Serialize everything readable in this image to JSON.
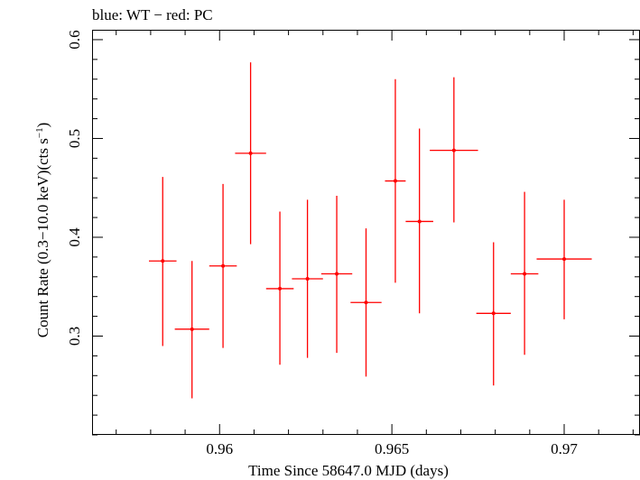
{
  "chart_data": {
    "type": "scatter",
    "title": "blue: WT − red: PC",
    "xlabel": "Time Since 58647.0 MJD (days)",
    "ylabel_main": "Count Rate (0.3−10.0 keV)(cts s",
    "ylabel_sup": "−1",
    "ylabel_close": ")",
    "xlim": [
      0.9563,
      0.9722
    ],
    "ylim": [
      0.2,
      0.61
    ],
    "x_ticks": [
      0.96,
      0.965,
      0.97
    ],
    "x_tick_labels": [
      "0.96",
      "0.965",
      "0.97"
    ],
    "y_ticks": [
      0.3,
      0.4,
      0.5,
      0.6
    ],
    "y_tick_labels": [
      "0.3",
      "0.4",
      "0.5",
      "0.6"
    ],
    "colors": {
      "PC": "#ff0000",
      "axes": "#000000"
    },
    "series": [
      {
        "name": "PC",
        "points": [
          {
            "x": 0.95835,
            "y": 0.376,
            "xerr": 0.0004,
            "ylo": 0.29,
            "yhi": 0.461
          },
          {
            "x": 0.9592,
            "y": 0.307,
            "xerr": 0.0005,
            "ylo": 0.237,
            "yhi": 0.376
          },
          {
            "x": 0.9601,
            "y": 0.371,
            "xerr": 0.0004,
            "ylo": 0.288,
            "yhi": 0.454
          },
          {
            "x": 0.9609,
            "y": 0.485,
            "xerr": 0.00045,
            "ylo": 0.393,
            "yhi": 0.577
          },
          {
            "x": 0.96175,
            "y": 0.348,
            "xerr": 0.0004,
            "ylo": 0.271,
            "yhi": 0.426
          },
          {
            "x": 0.96255,
            "y": 0.358,
            "xerr": 0.00045,
            "ylo": 0.278,
            "yhi": 0.438
          },
          {
            "x": 0.9634,
            "y": 0.363,
            "xerr": 0.00045,
            "ylo": 0.283,
            "yhi": 0.442
          },
          {
            "x": 0.96425,
            "y": 0.334,
            "xerr": 0.00045,
            "ylo": 0.259,
            "yhi": 0.409
          },
          {
            "x": 0.9651,
            "y": 0.457,
            "xerr": 0.0003,
            "ylo": 0.354,
            "yhi": 0.56
          },
          {
            "x": 0.9658,
            "y": 0.416,
            "xerr": 0.0004,
            "ylo": 0.323,
            "yhi": 0.51
          },
          {
            "x": 0.9668,
            "y": 0.488,
            "xerr": 0.0007,
            "ylo": 0.415,
            "yhi": 0.562
          },
          {
            "x": 0.96795,
            "y": 0.323,
            "xerr": 0.0005,
            "ylo": 0.25,
            "yhi": 0.395
          },
          {
            "x": 0.96885,
            "y": 0.363,
            "xerr": 0.0004,
            "ylo": 0.281,
            "yhi": 0.446
          },
          {
            "x": 0.97,
            "y": 0.378,
            "xerr": 0.0008,
            "ylo": 0.317,
            "yhi": 0.438
          }
        ]
      }
    ],
    "grid": false,
    "legend": "none"
  }
}
